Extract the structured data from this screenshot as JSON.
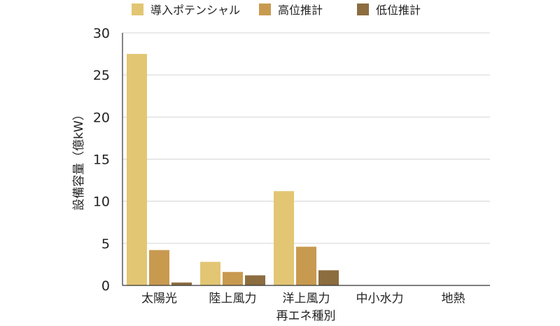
{
  "chart_data": {
    "type": "bar",
    "title": "",
    "xlabel": "再エネ種別",
    "ylabel": "設備容量（億kW）",
    "ylim": [
      0,
      30
    ],
    "yticks": [
      0,
      5,
      10,
      15,
      20,
      25,
      30
    ],
    "grid": true,
    "legend_position": "top",
    "categories": [
      "太陽光",
      "陸上風力",
      "洋上風力",
      "中小水力",
      "地熱"
    ],
    "series": [
      {
        "name": "導入ポテンシャル",
        "color": "#E2C673",
        "values": [
          27.5,
          2.8,
          11.2,
          0.02,
          0.03
        ]
      },
      {
        "name": "高位推計",
        "color": "#C89A50",
        "values": [
          4.2,
          1.6,
          4.6,
          0.01,
          0.02
        ]
      },
      {
        "name": "低位推計",
        "color": "#8C6D3F",
        "values": [
          0.35,
          1.2,
          1.8,
          0.01,
          0.01
        ]
      }
    ]
  }
}
